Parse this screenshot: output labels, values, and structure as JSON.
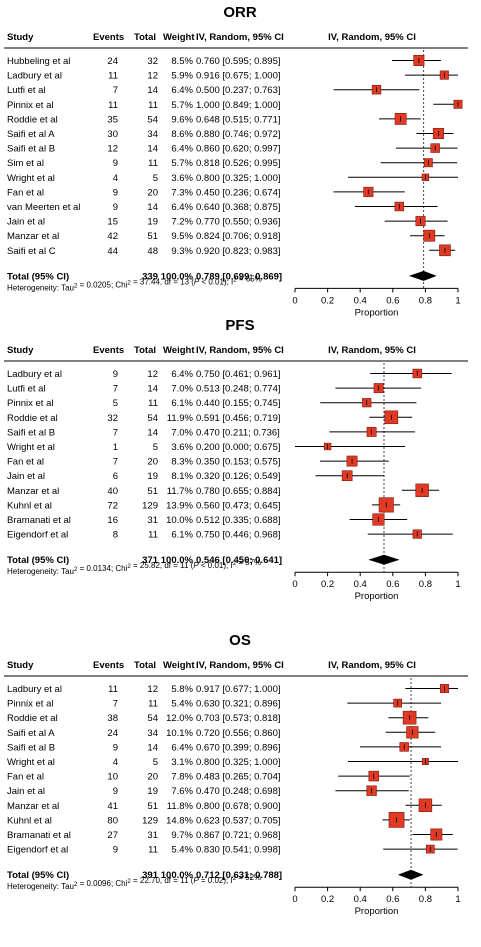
{
  "chart_data": [
    {
      "type": "forest",
      "title": "ORR",
      "headers": {
        "study": "Study",
        "events": "Events",
        "total": "Total",
        "weight": "Weight",
        "ci": "IV, Random, 95% CI",
        "plot": "IV, Random, 95% CI"
      },
      "xlabel": "Proportion",
      "xlim": [
        0,
        1
      ],
      "ticks": [
        "0",
        "0.2",
        "0.4",
        "0.6",
        "0.8",
        "1"
      ],
      "ref_line": 0.789,
      "studies": [
        {
          "study": "Hubbeling et al",
          "events": "24",
          "total": "32",
          "weight": "8.5%",
          "ci": "0.760 [0.595; 0.895]",
          "est": 0.76,
          "lo": 0.595,
          "hi": 0.895
        },
        {
          "study": "Ladbury et al",
          "events": "11",
          "total": "12",
          "weight": "5.9%",
          "ci": "0.916 [0.675; 1.000]",
          "est": 0.916,
          "lo": 0.675,
          "hi": 1.0
        },
        {
          "study": "Lutfi et al",
          "events": "7",
          "total": "14",
          "weight": "6.4%",
          "ci": "0.500 [0.237; 0.763]",
          "est": 0.5,
          "lo": 0.237,
          "hi": 0.763
        },
        {
          "study": "Pinnix et al",
          "events": "11",
          "total": "11",
          "weight": "5.7%",
          "ci": "1.000 [0.849; 1.000]",
          "est": 1.0,
          "lo": 0.849,
          "hi": 1.0
        },
        {
          "study": "Roddie et al",
          "events": "35",
          "total": "54",
          "weight": "9.6%",
          "ci": "0.648 [0.515; 0.771]",
          "est": 0.648,
          "lo": 0.515,
          "hi": 0.771
        },
        {
          "study": "Saifi et al A",
          "events": "30",
          "total": "34",
          "weight": "8.6%",
          "ci": "0.880 [0.746; 0.972]",
          "est": 0.88,
          "lo": 0.746,
          "hi": 0.972
        },
        {
          "study": "Saifi et al B",
          "events": "12",
          "total": "14",
          "weight": "6.4%",
          "ci": "0.860 [0.620; 0.997]",
          "est": 0.86,
          "lo": 0.62,
          "hi": 0.997
        },
        {
          "study": "Sim et al",
          "events": "9",
          "total": "11",
          "weight": "5.7%",
          "ci": "0.818 [0.526; 0.995]",
          "est": 0.818,
          "lo": 0.526,
          "hi": 0.995
        },
        {
          "study": "Wright et al",
          "events": "4",
          "total": "5",
          "weight": "3.6%",
          "ci": "0.800 [0.325; 1.000]",
          "est": 0.8,
          "lo": 0.325,
          "hi": 1.0
        },
        {
          "study": "Fan et al",
          "events": "9",
          "total": "20",
          "weight": "7.3%",
          "ci": "0.450 [0.236; 0.674]",
          "est": 0.45,
          "lo": 0.236,
          "hi": 0.674
        },
        {
          "study": "van Meerten et al",
          "events": "9",
          "total": "14",
          "weight": "6.4%",
          "ci": "0.640 [0.368; 0.875]",
          "est": 0.64,
          "lo": 0.368,
          "hi": 0.875
        },
        {
          "study": "Jain et al",
          "events": "15",
          "total": "19",
          "weight": "7.2%",
          "ci": "0.770 [0.550; 0.936]",
          "est": 0.77,
          "lo": 0.55,
          "hi": 0.936
        },
        {
          "study": "Manzar et al",
          "events": "42",
          "total": "51",
          "weight": "9.5%",
          "ci": "0.824 [0.706; 0.918]",
          "est": 0.824,
          "lo": 0.706,
          "hi": 0.918
        },
        {
          "study": "Saifi et al C",
          "events": "44",
          "total": "48",
          "weight": "9.3%",
          "ci": "0.920 [0.823; 0.983]",
          "est": 0.92,
          "lo": 0.823,
          "hi": 0.983
        }
      ],
      "total": {
        "label": "Total (95% CI)",
        "total": "339",
        "weight": "100.0%",
        "ci": "0.789 [0.699; 0.869]",
        "est": 0.789,
        "lo": 0.699,
        "hi": 0.869
      },
      "heterogeneity": {
        "tau2": "0.0205",
        "chi2": "37.44",
        "df": "13",
        "p": "< 0.01",
        "i2": "65%"
      }
    },
    {
      "type": "forest",
      "title": "PFS",
      "headers": {
        "study": "Study",
        "events": "Events",
        "total": "Total",
        "weight": "Weight",
        "ci": "IV, Random, 95% CI",
        "plot": "IV, Random, 95% CI"
      },
      "xlabel": "Proportion",
      "xlim": [
        0,
        1
      ],
      "ticks": [
        "0",
        "0.2",
        "0.4",
        "0.6",
        "0.8",
        "1"
      ],
      "ref_line": 0.546,
      "studies": [
        {
          "study": "Ladbury et al",
          "events": "9",
          "total": "12",
          "weight": "6.4%",
          "ci": "0.750 [0.461; 0.961]",
          "est": 0.75,
          "lo": 0.461,
          "hi": 0.961
        },
        {
          "study": "Lutfi et al",
          "events": "7",
          "total": "14",
          "weight": "7.0%",
          "ci": "0.513 [0.248; 0.774]",
          "est": 0.513,
          "lo": 0.248,
          "hi": 0.774
        },
        {
          "study": "Pinnix et al",
          "events": "5",
          "total": "11",
          "weight": "6.1%",
          "ci": "0.440 [0.155; 0.745]",
          "est": 0.44,
          "lo": 0.155,
          "hi": 0.745
        },
        {
          "study": "Roddie et al",
          "events": "32",
          "total": "54",
          "weight": "11.9%",
          "ci": "0.591 [0.456; 0.719]",
          "est": 0.591,
          "lo": 0.456,
          "hi": 0.719
        },
        {
          "study": "Saifi et al B",
          "events": "7",
          "total": "14",
          "weight": "7.0%",
          "ci": "0.470 [0.211; 0.736]",
          "est": 0.47,
          "lo": 0.211,
          "hi": 0.736
        },
        {
          "study": "Wright et al",
          "events": "1",
          "total": "5",
          "weight": "3.6%",
          "ci": "0.200 [0.000; 0.675]",
          "est": 0.2,
          "lo": 0.0,
          "hi": 0.675
        },
        {
          "study": "Fan et al",
          "events": "7",
          "total": "20",
          "weight": "8.3%",
          "ci": "0.350 [0.153; 0.575]",
          "est": 0.35,
          "lo": 0.153,
          "hi": 0.575
        },
        {
          "study": "Jain et al",
          "events": "6",
          "total": "19",
          "weight": "8.1%",
          "ci": "0.320 [0.126; 0.549]",
          "est": 0.32,
          "lo": 0.126,
          "hi": 0.549
        },
        {
          "study": "Manzar et al",
          "events": "40",
          "total": "51",
          "weight": "11.7%",
          "ci": "0.780 [0.655; 0.884]",
          "est": 0.78,
          "lo": 0.655,
          "hi": 0.884
        },
        {
          "study": "Kuhnl et al",
          "events": "72",
          "total": "129",
          "weight": "13.9%",
          "ci": "0.560 [0.473; 0.645]",
          "est": 0.56,
          "lo": 0.473,
          "hi": 0.645
        },
        {
          "study": "Bramanati et al",
          "events": "16",
          "total": "31",
          "weight": "10.0%",
          "ci": "0.512 [0.335; 0.688]",
          "est": 0.512,
          "lo": 0.335,
          "hi": 0.688
        },
        {
          "study": "Eigendorf et al",
          "events": "8",
          "total": "11",
          "weight": "6.1%",
          "ci": "0.750 [0.446; 0.968]",
          "est": 0.75,
          "lo": 0.446,
          "hi": 0.968
        }
      ],
      "total": {
        "label": "Total (95% CI)",
        "total": "371",
        "weight": "100.0%",
        "ci": "0.546 [0.450; 0.641]",
        "est": 0.546,
        "lo": 0.45,
        "hi": 0.641
      },
      "heterogeneity": {
        "tau2": "0.0134",
        "chi2": "25.82",
        "df": "11",
        "p": "< 0.01",
        "i2": "57%"
      }
    },
    {
      "type": "forest",
      "title": "OS",
      "headers": {
        "study": "Study",
        "events": "Events",
        "total": "Total",
        "weight": "Weight",
        "ci": "IV, Random, 95% CI",
        "plot": "IV, Random, 95% CI"
      },
      "xlabel": "Proportion",
      "xlim": [
        0,
        1
      ],
      "ticks": [
        "0",
        "0.2",
        "0.4",
        "0.6",
        "0.8",
        "1"
      ],
      "ref_line": 0.712,
      "studies": [
        {
          "study": "Ladbury et al",
          "events": "11",
          "total": "12",
          "weight": "5.8%",
          "ci": "0.917 [0.677; 1.000]",
          "est": 0.917,
          "lo": 0.677,
          "hi": 1.0
        },
        {
          "study": "Pinnix et al",
          "events": "7",
          "total": "11",
          "weight": "5.4%",
          "ci": "0.630 [0.321; 0.896]",
          "est": 0.63,
          "lo": 0.321,
          "hi": 0.896
        },
        {
          "study": "Roddie et al",
          "events": "38",
          "total": "54",
          "weight": "12.0%",
          "ci": "0.703 [0.573; 0.818]",
          "est": 0.703,
          "lo": 0.573,
          "hi": 0.818
        },
        {
          "study": "Saifi et al A",
          "events": "24",
          "total": "34",
          "weight": "10.1%",
          "ci": "0.720 [0.556; 0.860]",
          "est": 0.72,
          "lo": 0.556,
          "hi": 0.86
        },
        {
          "study": "Saifi et al B",
          "events": "9",
          "total": "14",
          "weight": "6.4%",
          "ci": "0.670 [0.399; 0.896]",
          "est": 0.67,
          "lo": 0.399,
          "hi": 0.896
        },
        {
          "study": "Wright et al",
          "events": "4",
          "total": "5",
          "weight": "3.1%",
          "ci": "0.800 [0.325; 1.000]",
          "est": 0.8,
          "lo": 0.325,
          "hi": 1.0
        },
        {
          "study": "Fan et al",
          "events": "10",
          "total": "20",
          "weight": "7.8%",
          "ci": "0.483 [0.265; 0.704]",
          "est": 0.483,
          "lo": 0.265,
          "hi": 0.704
        },
        {
          "study": "Jain et al",
          "events": "9",
          "total": "19",
          "weight": "7.6%",
          "ci": "0.470 [0.248; 0.698]",
          "est": 0.47,
          "lo": 0.248,
          "hi": 0.698
        },
        {
          "study": "Manzar et al",
          "events": "41",
          "total": "51",
          "weight": "11.8%",
          "ci": "0.800 [0.678; 0.900]",
          "est": 0.8,
          "lo": 0.678,
          "hi": 0.9
        },
        {
          "study": "Kuhnl et al",
          "events": "80",
          "total": "129",
          "weight": "14.8%",
          "ci": "0.623 [0.537; 0.705]",
          "est": 0.623,
          "lo": 0.537,
          "hi": 0.705
        },
        {
          "study": "Bramanati et al",
          "events": "27",
          "total": "31",
          "weight": "9.7%",
          "ci": "0.867 [0.721; 0.968]",
          "est": 0.867,
          "lo": 0.721,
          "hi": 0.968
        },
        {
          "study": "Eigendorf et al",
          "events": "9",
          "total": "11",
          "weight": "5.4%",
          "ci": "0.830 [0.541; 0.998]",
          "est": 0.83,
          "lo": 0.541,
          "hi": 0.998
        }
      ],
      "total": {
        "label": "Total (95% CI)",
        "total": "391",
        "weight": "100.0%",
        "ci": "0.712 [0.631; 0.788]",
        "est": 0.712,
        "lo": 0.631,
        "hi": 0.788
      },
      "heterogeneity": {
        "tau2": "0.0096",
        "chi2": "22.70",
        "df": "11",
        "p": "= 0.02",
        "i2": "52%"
      }
    }
  ],
  "colors": {
    "box": "#e03a24",
    "box_stroke": "#7a1a10",
    "line": "#000000",
    "ref": "#444444",
    "text": "#000000"
  }
}
